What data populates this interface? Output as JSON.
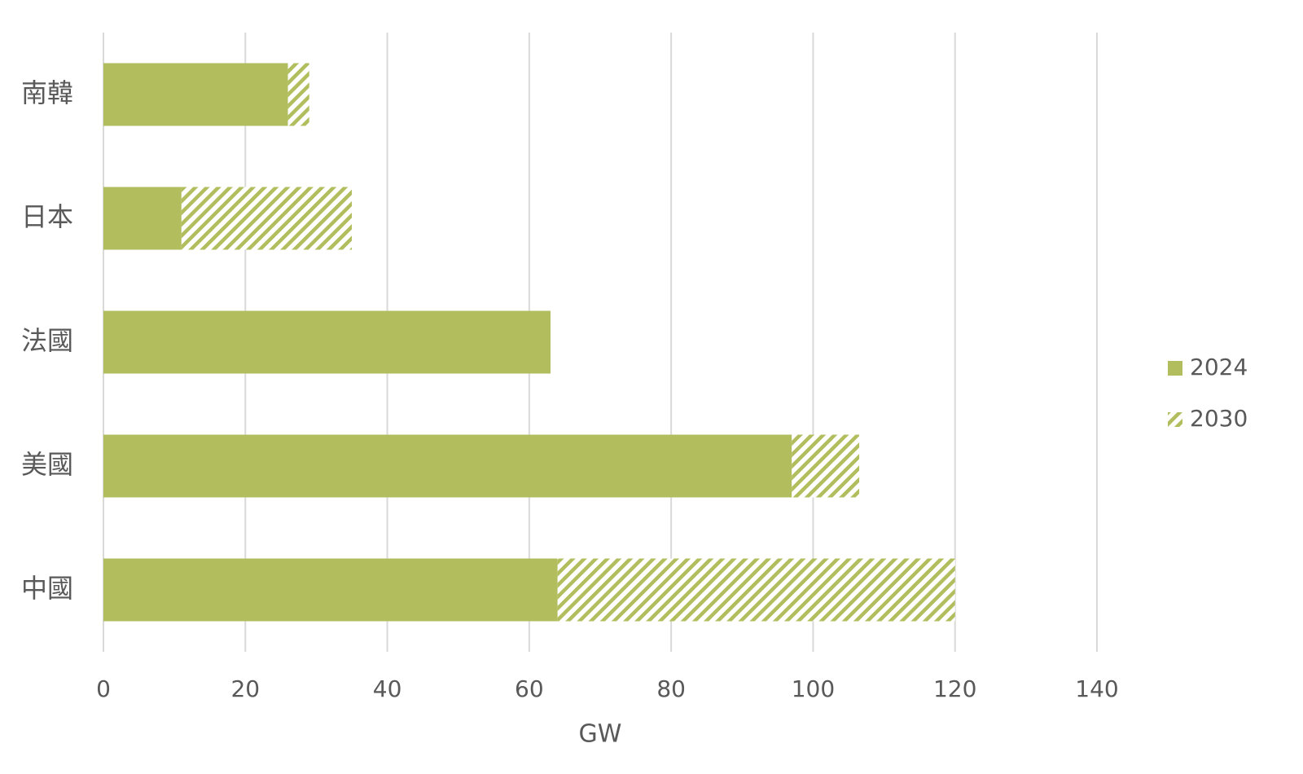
{
  "chart_data": {
    "type": "stacked-bar-horizontal",
    "categories": [
      "南韓",
      "日本",
      "法國",
      "美國",
      "中國"
    ],
    "series": [
      {
        "name": "2024",
        "color": "#b2be5d",
        "hatch": false,
        "values": [
          26,
          11,
          63,
          97,
          64
        ]
      },
      {
        "name": "2030",
        "color": "#b2be5d",
        "hatch": true,
        "values": [
          3,
          24,
          0,
          9.5,
          56
        ]
      }
    ],
    "xlabel": "GW",
    "xlim": [
      0,
      140
    ],
    "xticks": [
      0,
      20,
      40,
      60,
      80,
      100,
      120,
      140
    ],
    "grid": true,
    "legend": "right"
  }
}
